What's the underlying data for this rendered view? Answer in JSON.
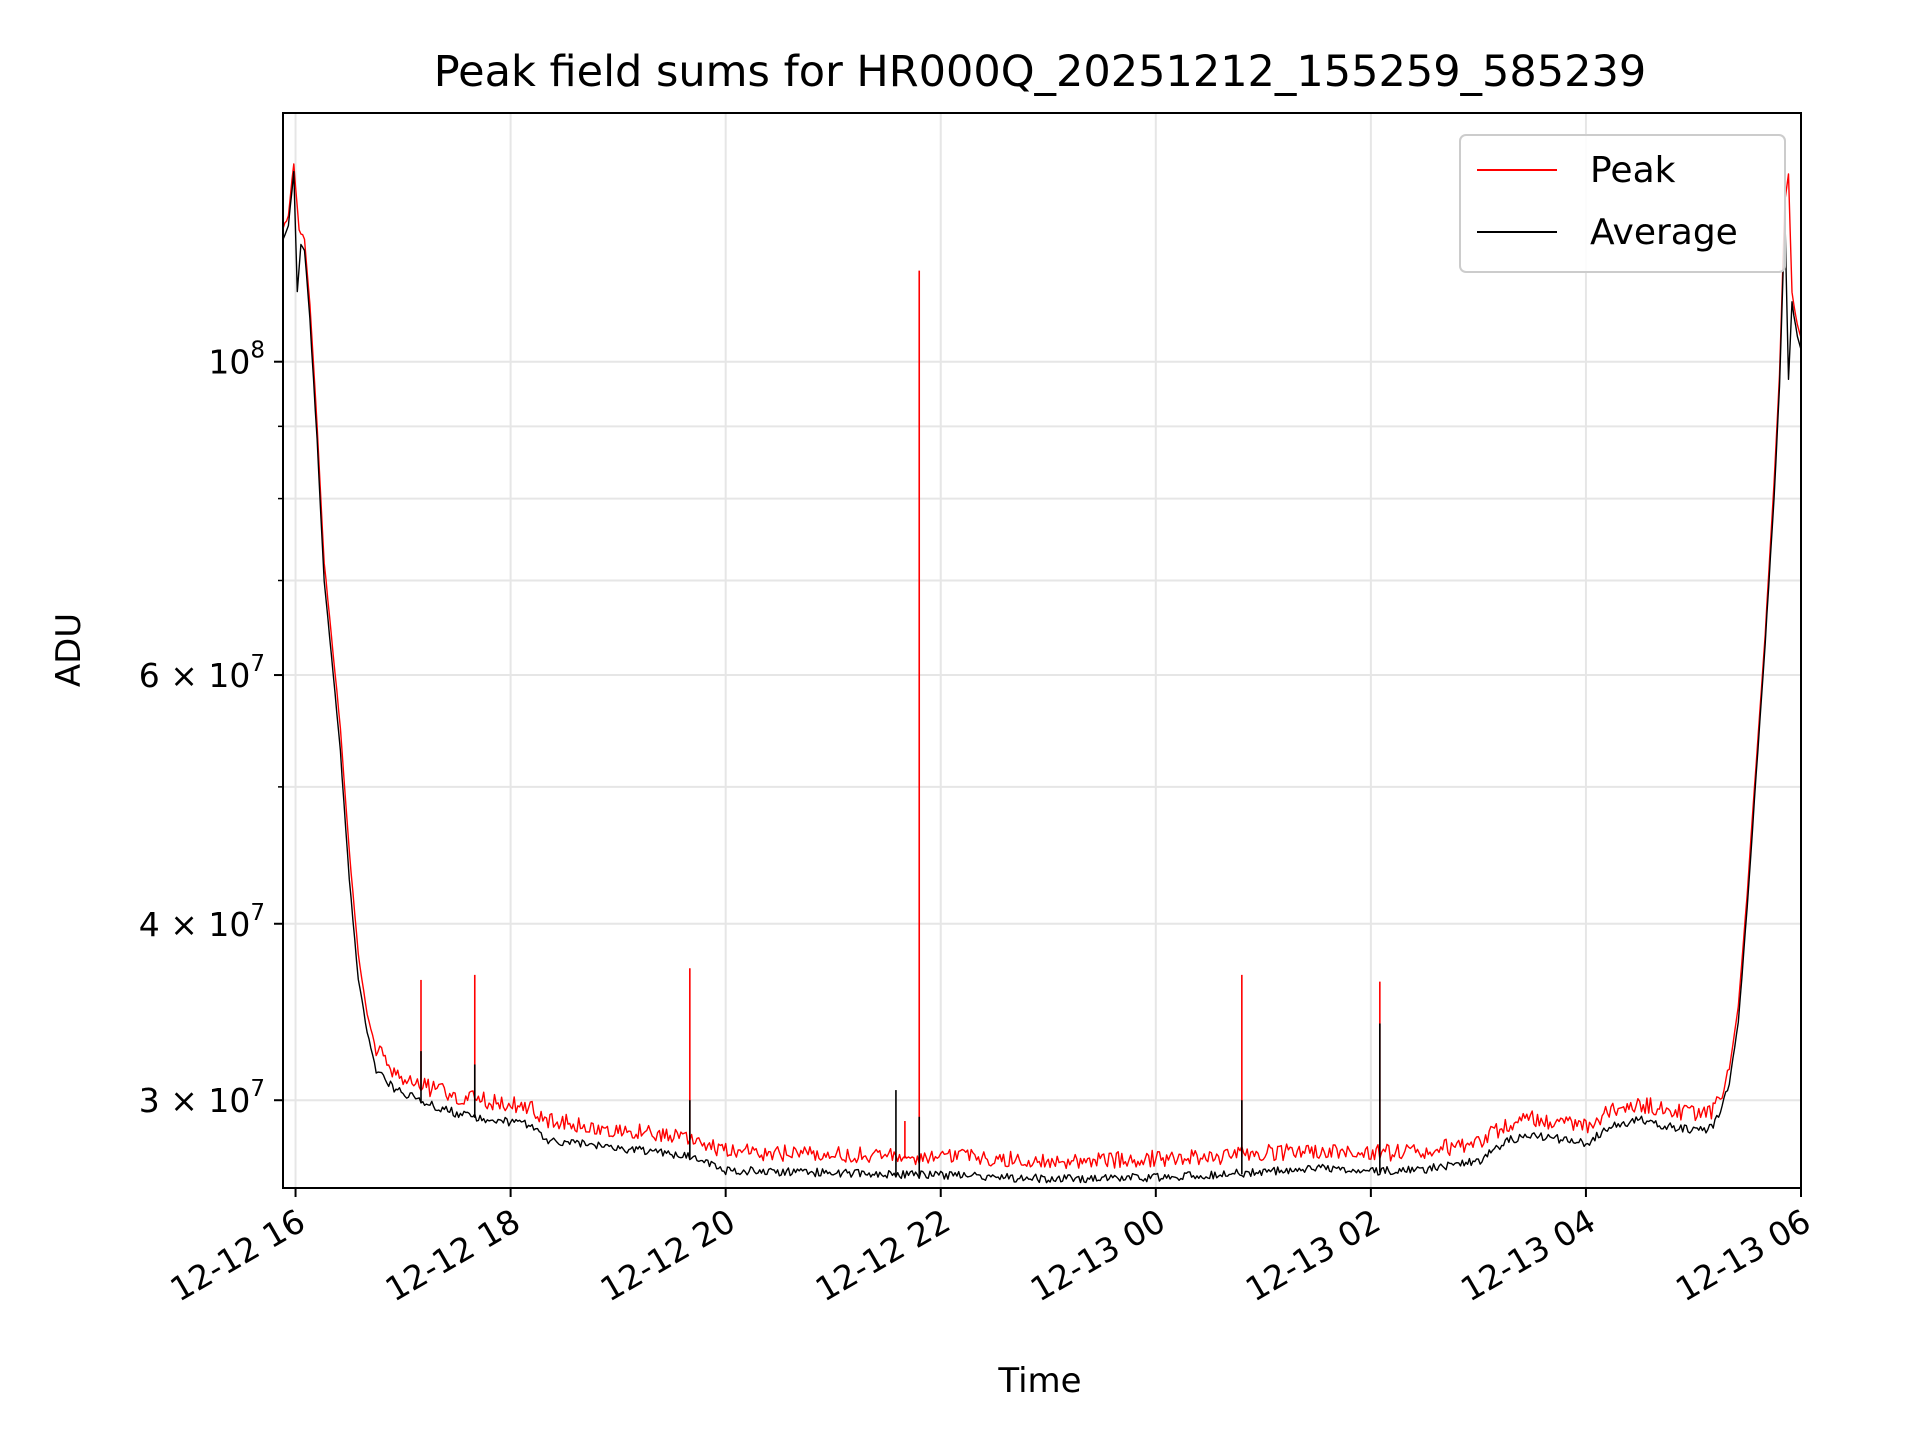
{
  "chart_data": {
    "type": "line",
    "title": "Peak field sums for HR000Q_20251212_155259_585239",
    "xlabel": "Time",
    "ylabel": "ADU",
    "yscale": "log",
    "x_range": [
      "2025-12-12 15:53",
      "2025-12-13 06:00"
    ],
    "ylim": [
      26000000,
      150000000
    ],
    "grid": true,
    "legend_position": "top-right",
    "x_ticks": [
      {
        "t": "2025-12-12 16:00",
        "label": "12-12 16"
      },
      {
        "t": "2025-12-12 18:00",
        "label": "12-12 18"
      },
      {
        "t": "2025-12-12 20:00",
        "label": "12-12 20"
      },
      {
        "t": "2025-12-12 22:00",
        "label": "12-12 22"
      },
      {
        "t": "2025-12-13 00:00",
        "label": "12-13 00"
      },
      {
        "t": "2025-12-13 02:00",
        "label": "12-13 02"
      },
      {
        "t": "2025-12-13 04:00",
        "label": "12-13 04"
      },
      {
        "t": "2025-12-13 06:00",
        "label": "12-13 06"
      }
    ],
    "y_ticks": [
      {
        "value": 100000000,
        "base": "10",
        "exp": "8"
      },
      {
        "value": 60000000,
        "base": "6 × 10",
        "exp": "7"
      },
      {
        "value": 40000000,
        "base": "4 × 10",
        "exp": "7"
      },
      {
        "value": 30000000,
        "base": "3 × 10",
        "exp": "7"
      }
    ],
    "y_minor_ticks": [
      50000000,
      70000000,
      80000000,
      90000000
    ],
    "series": [
      {
        "name": "Peak",
        "color": "#ff0000",
        "points": [
          [
            "2025-12-12 15:53",
            124000000
          ],
          [
            "2025-12-12 15:56",
            127000000
          ],
          [
            "2025-12-12 15:59",
            138000000
          ],
          [
            "2025-12-12 16:02",
            124000000
          ],
          [
            "2025-12-12 16:05",
            122000000
          ],
          [
            "2025-12-12 16:08",
            110000000
          ],
          [
            "2025-12-12 16:12",
            90000000
          ],
          [
            "2025-12-12 16:16",
            72000000
          ],
          [
            "2025-12-12 16:20",
            64000000
          ],
          [
            "2025-12-12 16:25",
            55000000
          ],
          [
            "2025-12-12 16:30",
            45000000
          ],
          [
            "2025-12-12 16:35",
            38000000
          ],
          [
            "2025-12-12 16:40",
            34500000
          ],
          [
            "2025-12-12 16:45",
            32500000
          ],
          [
            "2025-12-12 16:55",
            31300000
          ],
          [
            "2025-12-12 17:10",
            30600000
          ],
          [
            "2025-12-12 17:30",
            30100000
          ],
          [
            "2025-12-12 17:50",
            29800000
          ],
          [
            "2025-12-12 18:10",
            29600000
          ],
          [
            "2025-12-12 18:20",
            28900000
          ],
          [
            "2025-12-12 18:40",
            28700000
          ],
          [
            "2025-12-12 19:00",
            28500000
          ],
          [
            "2025-12-12 19:20",
            28300000
          ],
          [
            "2025-12-12 19:40",
            28100000
          ],
          [
            "2025-12-12 19:50",
            27800000
          ],
          [
            "2025-12-12 20:00",
            27500000
          ],
          [
            "2025-12-12 20:30",
            27400000
          ],
          [
            "2025-12-12 21:00",
            27350000
          ],
          [
            "2025-12-12 21:30",
            27300000
          ],
          [
            "2025-12-12 22:00",
            27250000
          ],
          [
            "2025-12-12 22:30",
            27150000
          ],
          [
            "2025-12-12 23:00",
            27100000
          ],
          [
            "2025-12-12 23:30",
            27100000
          ],
          [
            "2025-12-13 00:00",
            27150000
          ],
          [
            "2025-12-13 00:30",
            27250000
          ],
          [
            "2025-12-13 01:00",
            27400000
          ],
          [
            "2025-12-13 01:30",
            27500000
          ],
          [
            "2025-12-13 02:00",
            27400000
          ],
          [
            "2025-12-13 02:30",
            27500000
          ],
          [
            "2025-12-13 03:00",
            27900000
          ],
          [
            "2025-12-13 03:15",
            28700000
          ],
          [
            "2025-12-13 03:30",
            29000000
          ],
          [
            "2025-12-13 03:45",
            28800000
          ],
          [
            "2025-12-13 04:00",
            28600000
          ],
          [
            "2025-12-13 04:15",
            29400000
          ],
          [
            "2025-12-13 04:30",
            29700000
          ],
          [
            "2025-12-13 04:45",
            29400000
          ],
          [
            "2025-12-13 05:00",
            29200000
          ],
          [
            "2025-12-13 05:10",
            29300000
          ],
          [
            "2025-12-13 05:15",
            30000000
          ],
          [
            "2025-12-13 05:20",
            31500000
          ],
          [
            "2025-12-13 05:25",
            35000000
          ],
          [
            "2025-12-13 05:30",
            42000000
          ],
          [
            "2025-12-13 05:35",
            52000000
          ],
          [
            "2025-12-13 05:40",
            64000000
          ],
          [
            "2025-12-13 05:45",
            82000000
          ],
          [
            "2025-12-13 05:48",
            98000000
          ],
          [
            "2025-12-13 05:51",
            130000000
          ],
          [
            "2025-12-13 05:53",
            136000000
          ],
          [
            "2025-12-13 05:55",
            112000000
          ],
          [
            "2025-12-13 05:58",
            106000000
          ],
          [
            "2025-12-13 06:00",
            104000000
          ]
        ],
        "spikes": [
          [
            "2025-12-12 16:35",
            38000000
          ],
          [
            "2025-12-12 17:10",
            36500000
          ],
          [
            "2025-12-12 17:40",
            36800000
          ],
          [
            "2025-12-12 19:40",
            37200000
          ],
          [
            "2025-12-12 21:40",
            29000000
          ],
          [
            "2025-12-12 21:48",
            116000000
          ],
          [
            "2025-12-13 00:48",
            36800000
          ],
          [
            "2025-12-13 02:05",
            36400000
          ]
        ]
      },
      {
        "name": "Average",
        "color": "#000000",
        "points": [
          [
            "2025-12-12 15:53",
            122000000
          ],
          [
            "2025-12-12 15:56",
            125000000
          ],
          [
            "2025-12-12 15:59",
            136000000
          ],
          [
            "2025-12-12 16:01",
            112000000
          ],
          [
            "2025-12-12 16:03",
            121000000
          ],
          [
            "2025-12-12 16:05",
            120000000
          ],
          [
            "2025-12-12 16:08",
            107000000
          ],
          [
            "2025-12-12 16:12",
            88000000
          ],
          [
            "2025-12-12 16:16",
            70000000
          ],
          [
            "2025-12-12 16:20",
            62000000
          ],
          [
            "2025-12-12 16:25",
            53000000
          ],
          [
            "2025-12-12 16:30",
            43000000
          ],
          [
            "2025-12-12 16:35",
            36500000
          ],
          [
            "2025-12-12 16:40",
            33500000
          ],
          [
            "2025-12-12 16:45",
            31500000
          ],
          [
            "2025-12-12 16:55",
            30500000
          ],
          [
            "2025-12-12 17:10",
            29900000
          ],
          [
            "2025-12-12 17:30",
            29300000
          ],
          [
            "2025-12-12 17:50",
            29000000
          ],
          [
            "2025-12-12 18:10",
            28800000
          ],
          [
            "2025-12-12 18:20",
            28000000
          ],
          [
            "2025-12-12 18:40",
            27900000
          ],
          [
            "2025-12-12 19:00",
            27700000
          ],
          [
            "2025-12-12 19:20",
            27500000
          ],
          [
            "2025-12-12 19:40",
            27300000
          ],
          [
            "2025-12-12 19:50",
            27000000
          ],
          [
            "2025-12-12 20:00",
            26700000
          ],
          [
            "2025-12-12 20:30",
            26650000
          ],
          [
            "2025-12-12 21:00",
            26600000
          ],
          [
            "2025-12-12 21:30",
            26550000
          ],
          [
            "2025-12-12 22:00",
            26500000
          ],
          [
            "2025-12-12 22:30",
            26400000
          ],
          [
            "2025-12-12 23:00",
            26350000
          ],
          [
            "2025-12-12 23:30",
            26350000
          ],
          [
            "2025-12-13 00:00",
            26400000
          ],
          [
            "2025-12-13 00:30",
            26500000
          ],
          [
            "2025-12-13 01:00",
            26650000
          ],
          [
            "2025-12-13 01:30",
            26800000
          ],
          [
            "2025-12-13 02:00",
            26650000
          ],
          [
            "2025-12-13 02:30",
            26750000
          ],
          [
            "2025-12-13 03:00",
            27100000
          ],
          [
            "2025-12-13 03:15",
            28000000
          ],
          [
            "2025-12-13 03:30",
            28300000
          ],
          [
            "2025-12-13 03:45",
            28100000
          ],
          [
            "2025-12-13 04:00",
            27900000
          ],
          [
            "2025-12-13 04:15",
            28700000
          ],
          [
            "2025-12-13 04:30",
            29000000
          ],
          [
            "2025-12-13 04:45",
            28700000
          ],
          [
            "2025-12-13 05:00",
            28500000
          ],
          [
            "2025-12-13 05:10",
            28600000
          ],
          [
            "2025-12-13 05:15",
            29300000
          ],
          [
            "2025-12-13 05:20",
            30800000
          ],
          [
            "2025-12-13 05:25",
            34000000
          ],
          [
            "2025-12-13 05:30",
            41000000
          ],
          [
            "2025-12-13 05:35",
            51000000
          ],
          [
            "2025-12-13 05:40",
            63000000
          ],
          [
            "2025-12-13 05:45",
            80000000
          ],
          [
            "2025-12-13 05:48",
            96000000
          ],
          [
            "2025-12-13 05:51",
            127000000
          ],
          [
            "2025-12-13 05:53",
            97000000
          ],
          [
            "2025-12-13 05:55",
            110000000
          ],
          [
            "2025-12-13 05:58",
            104000000
          ],
          [
            "2025-12-13 06:00",
            102000000
          ]
        ],
        "spikes": [
          [
            "2025-12-12 17:10",
            32500000
          ],
          [
            "2025-12-12 17:40",
            31800000
          ],
          [
            "2025-12-12 19:40",
            30000000
          ],
          [
            "2025-12-12 21:35",
            30500000
          ],
          [
            "2025-12-12 21:48",
            29200000
          ],
          [
            "2025-12-13 00:48",
            30000000
          ],
          [
            "2025-12-13 02:05",
            34000000
          ]
        ]
      }
    ]
  }
}
